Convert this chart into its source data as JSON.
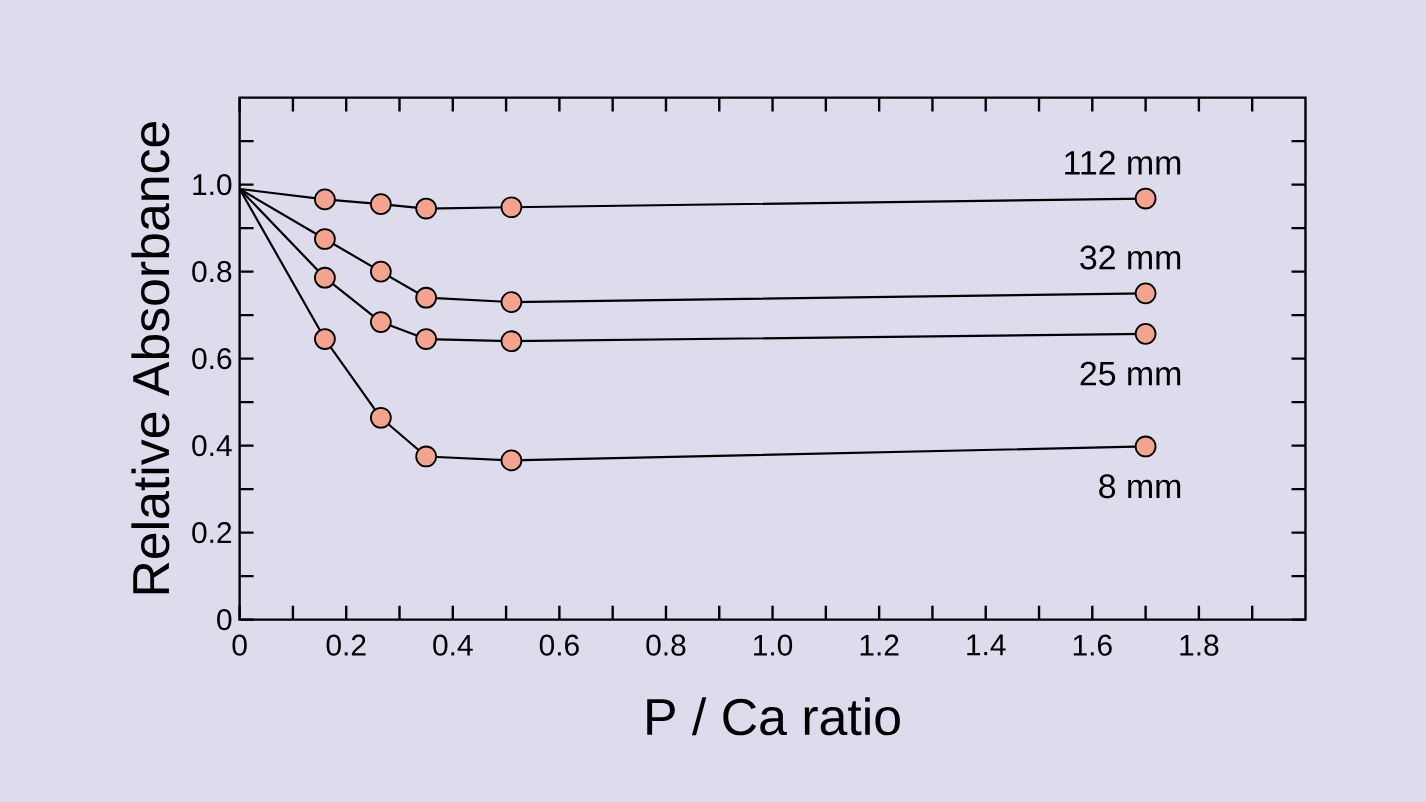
{
  "chart_data": {
    "type": "line",
    "xlabel": "P / Ca ratio",
    "ylabel": "Relative Absorbance",
    "marker": "circle",
    "x": [
      0,
      0.16,
      0.265,
      0.35,
      0.51,
      1.7
    ],
    "series": [
      {
        "name": "112 mm",
        "color": "#f4a38f",
        "values": [
          0.99,
          0.966,
          0.955,
          0.945,
          0.948,
          0.968
        ]
      },
      {
        "name": "32 mm",
        "color": "#f4a38f",
        "values": [
          0.99,
          0.875,
          0.8,
          0.74,
          0.73,
          0.75
        ]
      },
      {
        "name": "25 mm",
        "color": "#f4a38f",
        "values": [
          0.99,
          0.786,
          0.684,
          0.645,
          0.64,
          0.657
        ]
      },
      {
        "name": "8 mm",
        "color": "#f4a38f",
        "values": [
          0.99,
          0.645,
          0.464,
          0.375,
          0.366,
          0.398
        ]
      }
    ],
    "xlim": [
      0,
      2.0
    ],
    "ylim": [
      0,
      1.2
    ],
    "xticks": [
      0,
      {
        "value": 0.1,
        "label": null
      },
      0.2,
      {
        "value": 0.3,
        "label": null
      },
      0.4,
      {
        "value": 0.5,
        "label": null
      },
      0.6,
      {
        "value": 0.7,
        "label": null
      },
      0.8,
      {
        "value": 0.9,
        "label": null
      },
      {
        "value": 1.0,
        "label": "1.0"
      },
      {
        "value": 1.1,
        "label": null
      },
      1.2,
      {
        "value": 1.3,
        "label": null
      },
      1.4,
      {
        "value": 1.5,
        "label": null
      },
      1.6,
      {
        "value": 1.7,
        "label": null
      },
      1.8,
      {
        "value": 1.9,
        "label": null
      }
    ],
    "yticks": [
      0,
      {
        "value": 0.1,
        "label": null
      },
      0.2,
      {
        "value": 0.3,
        "label": null
      },
      0.4,
      {
        "value": 0.5,
        "label": null
      },
      0.6,
      {
        "value": 0.7,
        "label": null
      },
      0.8,
      {
        "value": 0.9,
        "label": null
      },
      {
        "value": 1.0,
        "label": "1.0"
      },
      {
        "value": 1.1,
        "label": null
      }
    ]
  }
}
